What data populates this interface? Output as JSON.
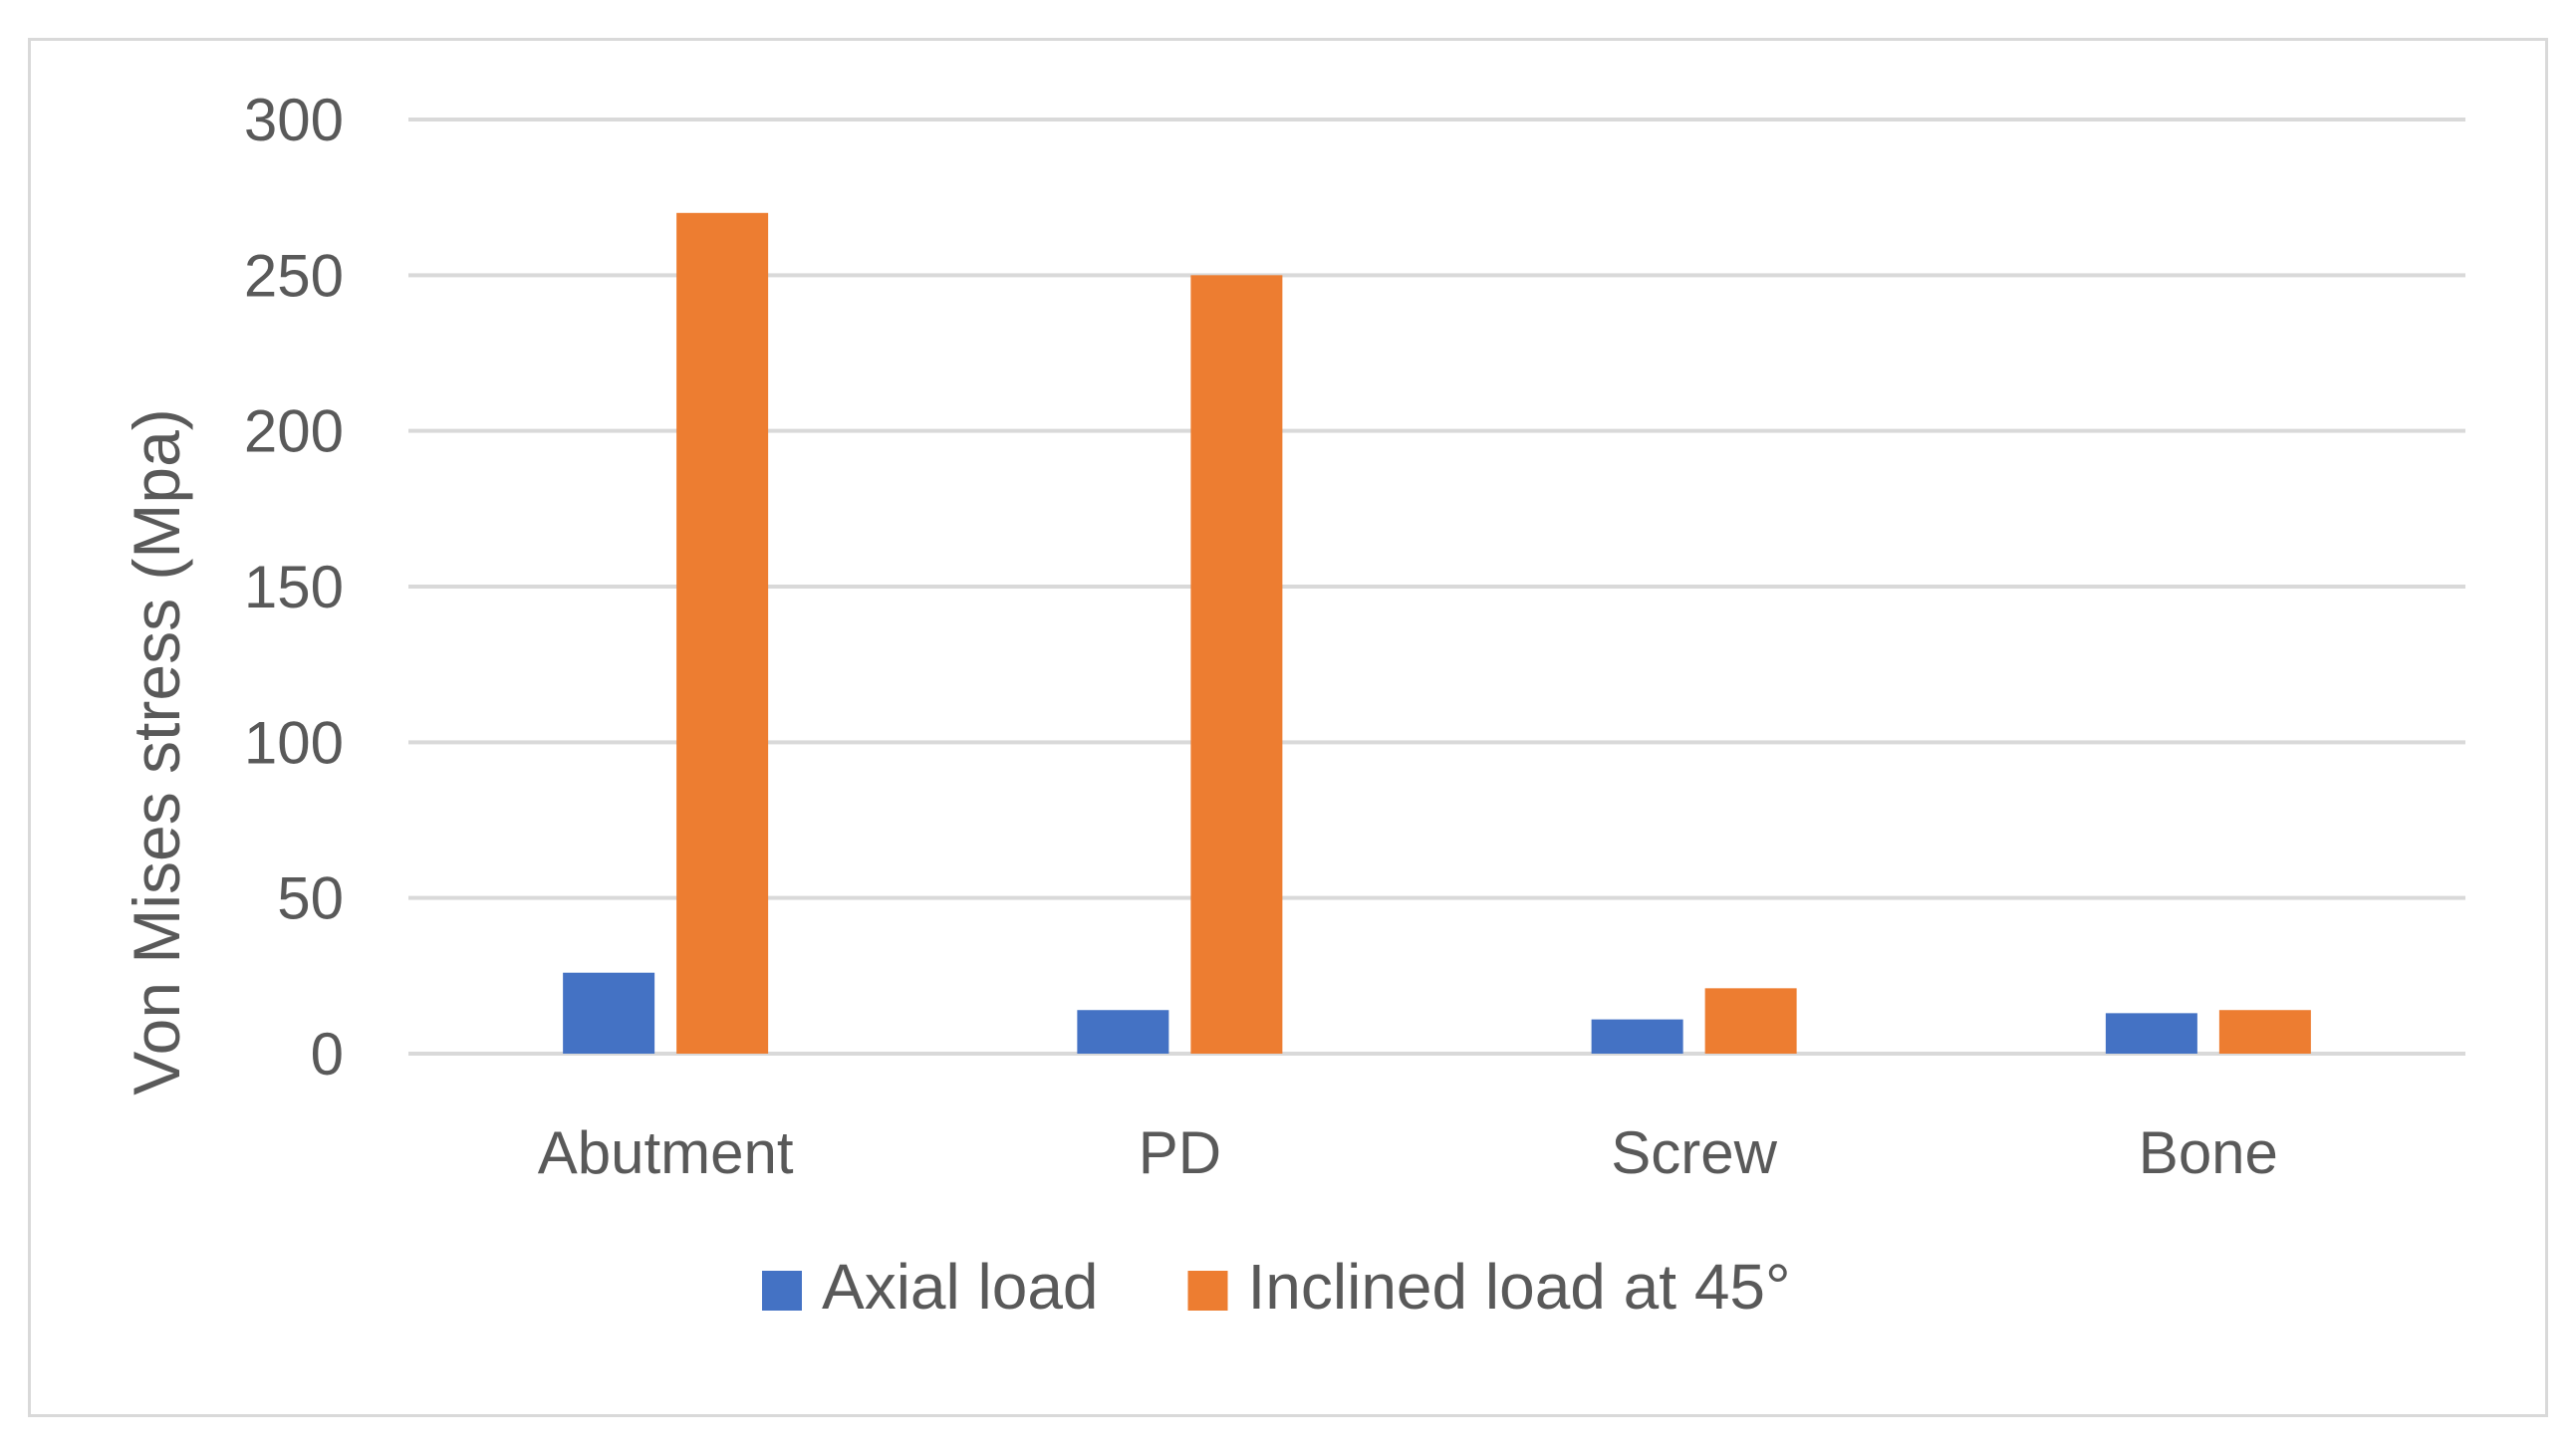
{
  "chart_data": {
    "type": "bar",
    "title": "",
    "xlabel": "",
    "ylabel": "Von Mises stress (Mpa)",
    "categories": [
      "Abutment",
      "PD",
      "Screw",
      "Bone"
    ],
    "series": [
      {
        "name": "Axial load",
        "values": [
          26,
          14,
          11,
          13
        ],
        "color": "#4472c4"
      },
      {
        "name": "Inclined load at 45°",
        "values": [
          270,
          250,
          21,
          14
        ],
        "color": "#ed7d31"
      }
    ],
    "ylim": [
      0,
      300
    ],
    "yticks": [
      0,
      50,
      100,
      150,
      200,
      250,
      300
    ],
    "grid": true,
    "legend_position": "bottom"
  }
}
